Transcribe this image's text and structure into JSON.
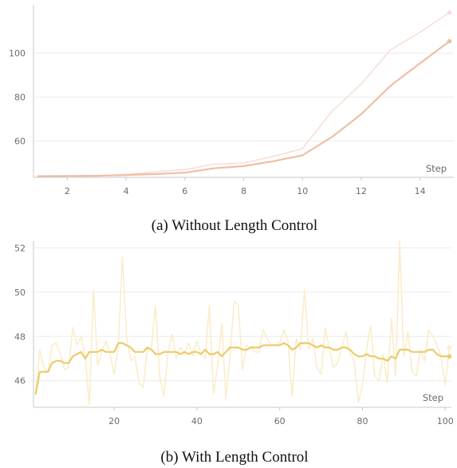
{
  "chart_data": [
    {
      "type": "line",
      "caption": "(a) Without Length Control",
      "xlabel": "Step",
      "xticks": [
        2,
        4,
        6,
        8,
        10,
        12,
        14
      ],
      "yticks": [
        60,
        80,
        100
      ],
      "xlim": [
        0.85,
        15.15
      ],
      "ylim": [
        43.5,
        122
      ],
      "x": [
        1,
        2,
        3,
        4,
        5,
        6,
        7,
        8,
        9,
        10,
        11,
        12,
        13,
        14,
        15
      ],
      "series": [
        {
          "kind": "raw",
          "color": "#f8ddd5",
          "values": [
            44.0,
            44.1,
            44.2,
            44.8,
            46.0,
            47.0,
            49.5,
            50.0,
            53.0,
            56.5,
            73.5,
            86.0,
            101.5,
            109.5,
            118.5
          ]
        },
        {
          "kind": "smoothed",
          "color": "#efbea6",
          "values": [
            44.0,
            44.1,
            44.2,
            44.5,
            45.0,
            45.6,
            47.6,
            48.6,
            50.8,
            53.5,
            61.8,
            72.2,
            85.2,
            95.4,
            105.4
          ]
        }
      ]
    },
    {
      "type": "line",
      "caption": "(b) With Length Control",
      "xlabel": "Step",
      "xticks": [
        20,
        40,
        60,
        80,
        100
      ],
      "yticks": [
        46,
        48,
        50,
        52
      ],
      "xlim": [
        0.5,
        101.5
      ],
      "ylim": [
        44.8,
        52.3
      ],
      "x_start": 1,
      "x_step": 1,
      "series": [
        {
          "kind": "raw",
          "color": "#fbecc8",
          "values": [
            45.4,
            47.4,
            46.6,
            46.4,
            47.6,
            47.7,
            47.2,
            46.5,
            46.6,
            48.4,
            47.6,
            48.0,
            47.1,
            44.9,
            50.1,
            46.7,
            47.3,
            47.8,
            47.2,
            46.3,
            47.6,
            51.6,
            48.0,
            46.9,
            47.1,
            45.9,
            45.7,
            47.4,
            47.5,
            49.4,
            46.2,
            45.3,
            47.3,
            48.1,
            47.0,
            47.5,
            47.2,
            47.7,
            47.1,
            47.8,
            47.2,
            47.0,
            49.4,
            45.4,
            46.7,
            48.6,
            45.2,
            47.1,
            49.6,
            49.4,
            46.5,
            47.6,
            47.5,
            47.3,
            47.3,
            48.3,
            47.9,
            47.6,
            47.6,
            47.7,
            48.3,
            47.8,
            45.3,
            47.9,
            47.4,
            50.1,
            47.4,
            47.9,
            46.6,
            46.3,
            48.4,
            47.4,
            46.6,
            46.8,
            47.5,
            48.2,
            47.2,
            46.9,
            45.0,
            45.8,
            47.4,
            48.5,
            46.2,
            46.0,
            47.2,
            45.9,
            48.8,
            46.2,
            52.3,
            47.1,
            48.2,
            46.4,
            46.2,
            47.4,
            46.9,
            48.3,
            48.0,
            47.6,
            47.1,
            45.8,
            47.5
          ]
        },
        {
          "kind": "smoothed",
          "color": "#eccb6d",
          "values": [
            45.4,
            46.4,
            46.4,
            46.4,
            46.8,
            46.9,
            46.9,
            46.8,
            46.8,
            47.1,
            47.2,
            47.3,
            47.0,
            47.3,
            47.3,
            47.3,
            47.4,
            47.3,
            47.3,
            47.3,
            47.7,
            47.7,
            47.6,
            47.5,
            47.3,
            47.3,
            47.3,
            47.5,
            47.4,
            47.2,
            47.2,
            47.3,
            47.3,
            47.3,
            47.3,
            47.2,
            47.3,
            47.2,
            47.3,
            47.3,
            47.2,
            47.4,
            47.2,
            47.2,
            47.3,
            47.1,
            47.3,
            47.5,
            47.5,
            47.5,
            47.4,
            47.4,
            47.5,
            47.5,
            47.5,
            47.6,
            47.6,
            47.6,
            47.6,
            47.6,
            47.7,
            47.6,
            47.4,
            47.5,
            47.7,
            47.7,
            47.7,
            47.6,
            47.5,
            47.6,
            47.5,
            47.5,
            47.4,
            47.4,
            47.5,
            47.5,
            47.4,
            47.2,
            47.1,
            47.1,
            47.2,
            47.1,
            47.1,
            47.0,
            47.0,
            46.9,
            47.1,
            47.0,
            47.4,
            47.4,
            47.4,
            47.3,
            47.3,
            47.3,
            47.3,
            47.4,
            47.4,
            47.2,
            47.1,
            47.1,
            47.1
          ]
        }
      ]
    }
  ]
}
